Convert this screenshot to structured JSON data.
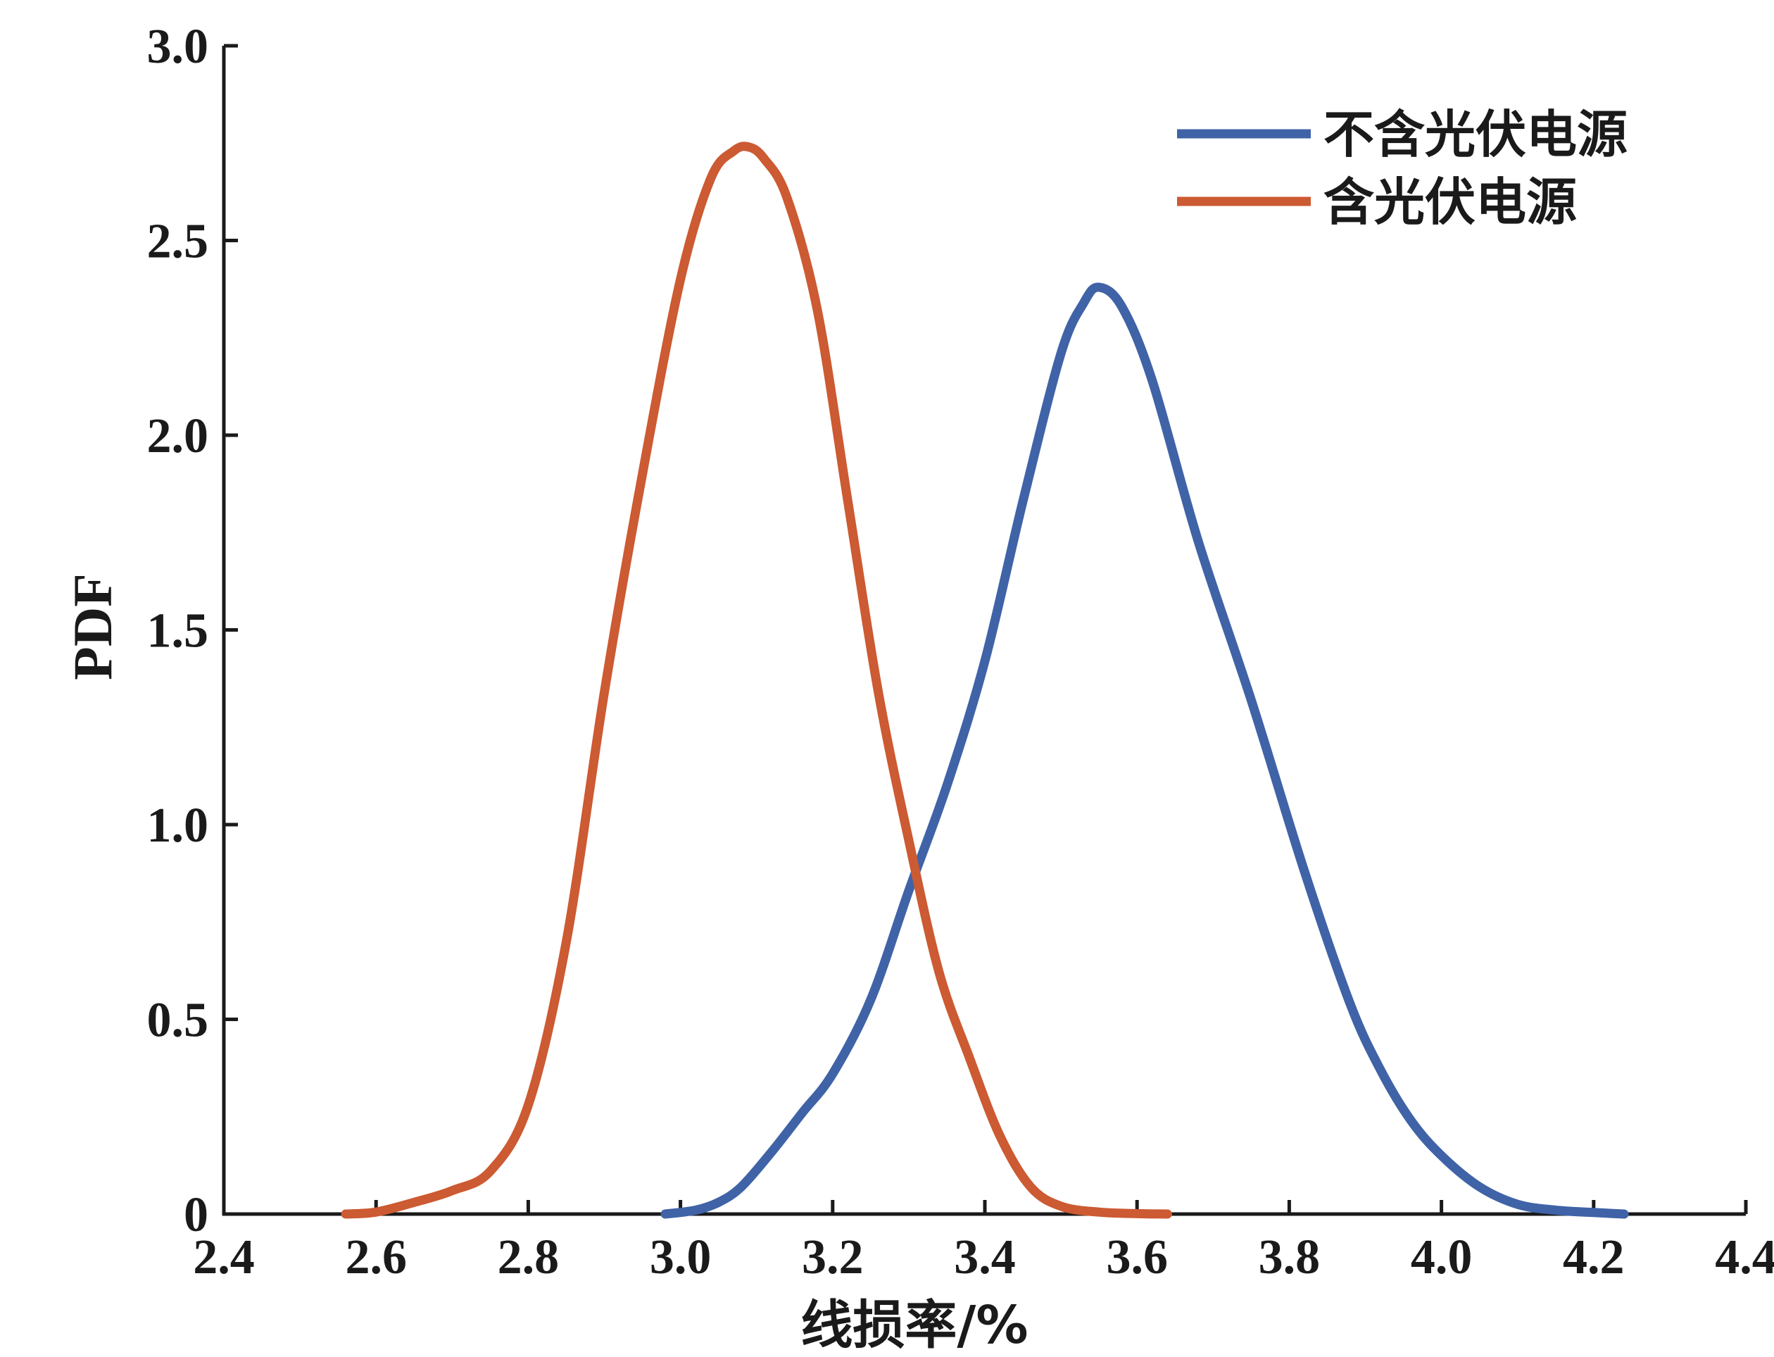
{
  "chart_data": {
    "type": "line",
    "title": "",
    "xlabel": "线损率/%",
    "ylabel": "PDF",
    "xlim": [
      2.4,
      4.4
    ],
    "ylim": [
      0,
      3.0
    ],
    "x_ticks": [
      2.4,
      2.6,
      2.8,
      3.0,
      3.2,
      3.4,
      3.6,
      3.8,
      4.0,
      4.2,
      4.4
    ],
    "x_tick_labels": [
      "2.4",
      "2.6",
      "2.8",
      "3.0",
      "3.2",
      "3.4",
      "3.6",
      "3.8",
      "4.0",
      "4.2",
      "4.4"
    ],
    "y_ticks": [
      0,
      0.5,
      1.0,
      1.5,
      2.0,
      2.5,
      3.0
    ],
    "y_tick_labels": [
      "0",
      "0.5",
      "1.0",
      "1.5",
      "2.0",
      "2.5",
      "3.0"
    ],
    "grid": false,
    "legend_position": "top-right",
    "series": [
      {
        "name": "不含光伏电源",
        "color": "#3f63a6",
        "x": [
          2.98,
          3.02,
          3.05,
          3.08,
          3.12,
          3.16,
          3.2,
          3.25,
          3.3,
          3.35,
          3.4,
          3.45,
          3.5,
          3.53,
          3.55,
          3.58,
          3.62,
          3.68,
          3.75,
          3.82,
          3.88,
          3.92,
          3.96,
          4.0,
          4.05,
          4.1,
          4.15,
          4.2,
          4.24
        ],
        "y": [
          0.0,
          0.01,
          0.03,
          0.07,
          0.16,
          0.26,
          0.36,
          0.55,
          0.83,
          1.1,
          1.42,
          1.83,
          2.21,
          2.34,
          2.38,
          2.33,
          2.14,
          1.73,
          1.32,
          0.88,
          0.54,
          0.37,
          0.24,
          0.15,
          0.07,
          0.025,
          0.01,
          0.004,
          0.0
        ]
      },
      {
        "name": "含光伏电源",
        "color": "#cc5a32",
        "x": [
          2.56,
          2.6,
          2.65,
          2.7,
          2.75,
          2.8,
          2.85,
          2.9,
          2.95,
          3.0,
          3.04,
          3.07,
          3.09,
          3.11,
          3.14,
          3.18,
          3.22,
          3.26,
          3.3,
          3.34,
          3.38,
          3.42,
          3.46,
          3.5,
          3.55,
          3.6,
          3.64
        ],
        "y": [
          0.0,
          0.005,
          0.03,
          0.06,
          0.11,
          0.28,
          0.7,
          1.34,
          1.9,
          2.4,
          2.66,
          2.73,
          2.74,
          2.71,
          2.61,
          2.32,
          1.83,
          1.34,
          0.96,
          0.62,
          0.4,
          0.2,
          0.07,
          0.02,
          0.005,
          0.001,
          0.0
        ]
      }
    ]
  }
}
